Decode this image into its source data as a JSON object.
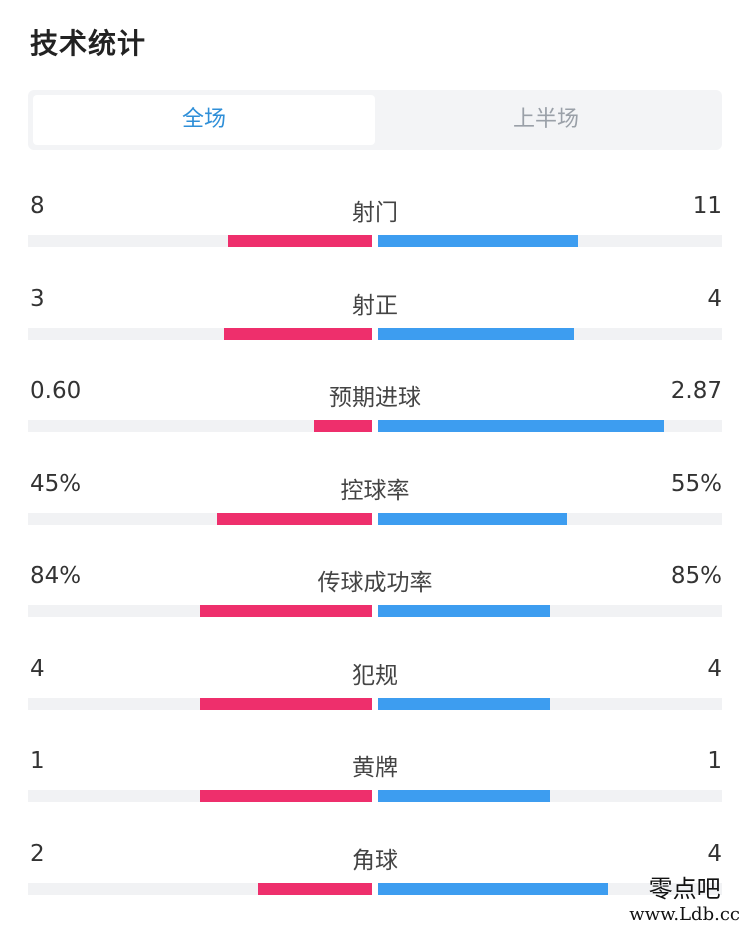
{
  "header": {
    "title": "技术统计"
  },
  "tabs": [
    {
      "label": "全场",
      "active": true
    },
    {
      "label": "上半场",
      "active": false
    }
  ],
  "colors": {
    "left_bar": "#ee2f6c",
    "right_bar": "#3d9df0",
    "active_tab": "#2f8fd8"
  },
  "stats": [
    {
      "name": "射门",
      "left": "8",
      "right": "11",
      "left_ratio": 0.42,
      "right_ratio": 0.58
    },
    {
      "name": "射正",
      "left": "3",
      "right": "4",
      "left_ratio": 0.43,
      "right_ratio": 0.57
    },
    {
      "name": "预期进球",
      "left": "0.60",
      "right": "2.87",
      "left_ratio": 0.17,
      "right_ratio": 0.83
    },
    {
      "name": "控球率",
      "left": "45%",
      "right": "55%",
      "left_ratio": 0.45,
      "right_ratio": 0.55
    },
    {
      "name": "传球成功率",
      "left": "84%",
      "right": "85%",
      "left_ratio": 0.5,
      "right_ratio": 0.5
    },
    {
      "name": "犯规",
      "left": "4",
      "right": "4",
      "left_ratio": 0.5,
      "right_ratio": 0.5
    },
    {
      "name": "黄牌",
      "left": "1",
      "right": "1",
      "left_ratio": 0.5,
      "right_ratio": 0.5
    },
    {
      "name": "角球",
      "left": "2",
      "right": "4",
      "left_ratio": 0.33,
      "right_ratio": 0.67
    }
  ],
  "watermark": {
    "line1": "零点吧",
    "line2": "www.Ldb.cc"
  }
}
